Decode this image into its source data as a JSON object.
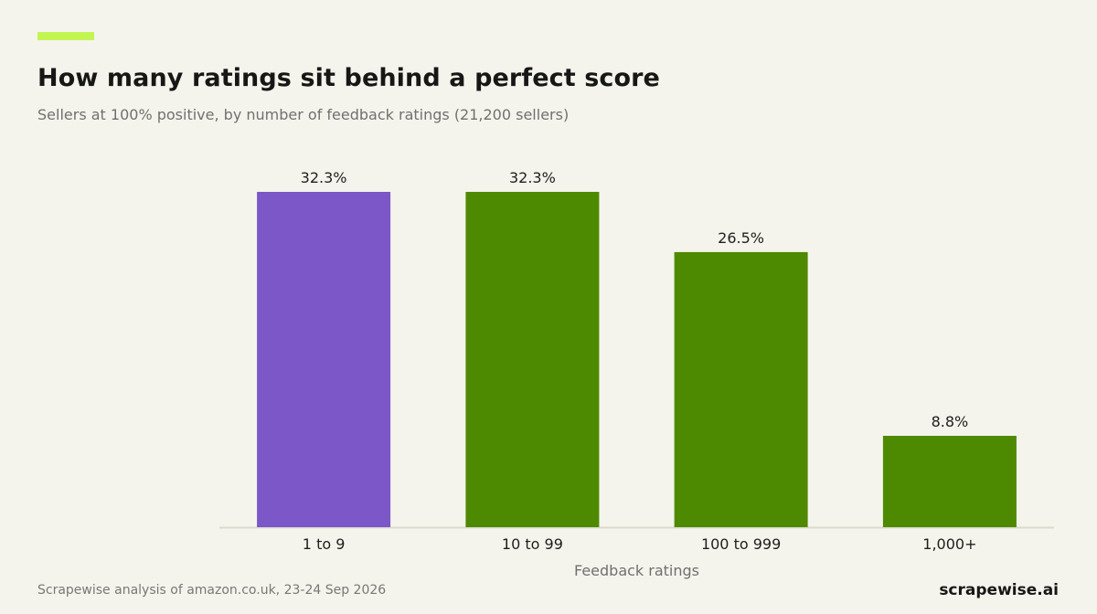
{
  "header": {
    "title": "How many ratings sit behind a perfect score",
    "subtitle": "Sellers at 100% positive, by number of feedback ratings (21,200 sellers)"
  },
  "footer": {
    "source": "Scrapewise analysis of amazon.co.uk, 23-24 Sep 2026",
    "brand": "scrapewise.ai"
  },
  "colors": {
    "accent": "#c3f552",
    "highlight": "#7b57c8",
    "bar": "#4e8a01",
    "axis": "#ddd9cc"
  },
  "chart_data": {
    "type": "bar",
    "categories": [
      "1 to 9",
      "10 to 99",
      "100 to 999",
      "1,000+"
    ],
    "values": [
      32.3,
      32.3,
      26.5,
      8.8
    ],
    "value_labels": [
      "32.3%",
      "32.3%",
      "26.5%",
      "8.8%"
    ],
    "highlight_index": 0,
    "xlabel": "Feedback ratings",
    "ylabel": "",
    "ylim": [
      0,
      32.3
    ],
    "grid": false,
    "legend": "none"
  }
}
